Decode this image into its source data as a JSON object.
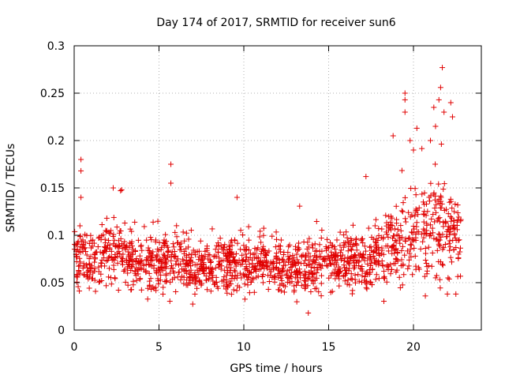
{
  "chart_data": {
    "type": "scatter",
    "title": "Day 174 of 2017, SRMTID for receiver sun6",
    "xlabel": "GPS time / hours",
    "ylabel": "SRMTID / TECUs",
    "xlim": [
      0,
      24
    ],
    "ylim": [
      0,
      0.3
    ],
    "x_ticks": [
      0,
      5,
      10,
      15,
      20
    ],
    "y_ticks": [
      0,
      0.05,
      0.1,
      0.15,
      0.2,
      0.25,
      0.3
    ],
    "x_tick_labels": [
      "0",
      "5",
      "10",
      "15",
      "20"
    ],
    "y_tick_labels": [
      "0",
      "0.05",
      "0.1",
      "0.15",
      "0.2",
      "0.25",
      "0.3"
    ],
    "grid": true,
    "marker": "+",
    "marker_color": "#e00000",
    "x_range_of_data": [
      0,
      22.8
    ],
    "typical_band": {
      "low": 0.04,
      "high": 0.11
    },
    "envelope": [
      {
        "x": 0.0,
        "center": 0.075,
        "spread": 0.035
      },
      {
        "x": 1.0,
        "center": 0.075,
        "spread": 0.03
      },
      {
        "x": 2.0,
        "center": 0.08,
        "spread": 0.03
      },
      {
        "x": 3.0,
        "center": 0.08,
        "spread": 0.03
      },
      {
        "x": 4.0,
        "center": 0.07,
        "spread": 0.03
      },
      {
        "x": 5.0,
        "center": 0.07,
        "spread": 0.03
      },
      {
        "x": 6.0,
        "center": 0.075,
        "spread": 0.03
      },
      {
        "x": 7.0,
        "center": 0.065,
        "spread": 0.025
      },
      {
        "x": 8.0,
        "center": 0.065,
        "spread": 0.025
      },
      {
        "x": 9.0,
        "center": 0.07,
        "spread": 0.028
      },
      {
        "x": 10.0,
        "center": 0.07,
        "spread": 0.028
      },
      {
        "x": 11.0,
        "center": 0.07,
        "spread": 0.025
      },
      {
        "x": 12.0,
        "center": 0.068,
        "spread": 0.025
      },
      {
        "x": 13.0,
        "center": 0.065,
        "spread": 0.025
      },
      {
        "x": 14.0,
        "center": 0.065,
        "spread": 0.027
      },
      {
        "x": 15.0,
        "center": 0.072,
        "spread": 0.027
      },
      {
        "x": 16.0,
        "center": 0.07,
        "spread": 0.025
      },
      {
        "x": 17.0,
        "center": 0.07,
        "spread": 0.028
      },
      {
        "x": 18.0,
        "center": 0.08,
        "spread": 0.03
      },
      {
        "x": 19.0,
        "center": 0.09,
        "spread": 0.035
      },
      {
        "x": 20.0,
        "center": 0.1,
        "spread": 0.045
      },
      {
        "x": 21.0,
        "center": 0.11,
        "spread": 0.05
      },
      {
        "x": 22.0,
        "center": 0.11,
        "spread": 0.05
      },
      {
        "x": 22.8,
        "center": 0.09,
        "spread": 0.03
      }
    ],
    "points_count": 1600,
    "notable_points": [
      {
        "x": 0.4,
        "y": 0.18
      },
      {
        "x": 0.4,
        "y": 0.168
      },
      {
        "x": 0.4,
        "y": 0.14
      },
      {
        "x": 2.3,
        "y": 0.15
      },
      {
        "x": 2.8,
        "y": 0.148
      },
      {
        "x": 5.7,
        "y": 0.175
      },
      {
        "x": 5.7,
        "y": 0.155
      },
      {
        "x": 9.6,
        "y": 0.14
      },
      {
        "x": 13.8,
        "y": 0.018
      },
      {
        "x": 17.2,
        "y": 0.162
      },
      {
        "x": 18.8,
        "y": 0.205
      },
      {
        "x": 19.5,
        "y": 0.25
      },
      {
        "x": 19.5,
        "y": 0.243
      },
      {
        "x": 19.5,
        "y": 0.23
      },
      {
        "x": 19.8,
        "y": 0.2
      },
      {
        "x": 20.0,
        "y": 0.19
      },
      {
        "x": 20.2,
        "y": 0.213
      },
      {
        "x": 20.7,
        "y": 0.036
      },
      {
        "x": 21.0,
        "y": 0.2
      },
      {
        "x": 21.2,
        "y": 0.235
      },
      {
        "x": 21.3,
        "y": 0.215
      },
      {
        "x": 21.5,
        "y": 0.243
      },
      {
        "x": 21.6,
        "y": 0.256
      },
      {
        "x": 21.7,
        "y": 0.277
      },
      {
        "x": 21.8,
        "y": 0.23
      },
      {
        "x": 22.0,
        "y": 0.038
      },
      {
        "x": 22.2,
        "y": 0.24
      },
      {
        "x": 22.3,
        "y": 0.225
      },
      {
        "x": 22.5,
        "y": 0.038
      }
    ]
  }
}
